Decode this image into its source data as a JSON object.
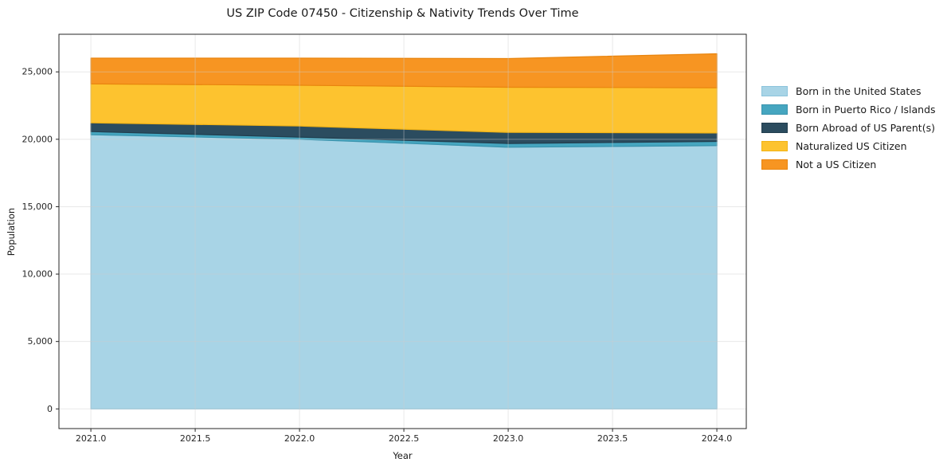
{
  "title": "US ZIP Code 07450 - Citizenship & Nativity Trends Over Time",
  "chart_data": {
    "type": "area",
    "stacked": true,
    "title": "US ZIP Code 07450 - Citizenship & Nativity Trends Over Time",
    "xlabel": "Year",
    "ylabel": "Population",
    "x": [
      2021,
      2022,
      2023,
      2024
    ],
    "series": [
      {
        "name": "Born in the United States",
        "color": "#a8d4e6",
        "edge": "#8cc4dc",
        "values": [
          20340,
          20000,
          19410,
          19530
        ]
      },
      {
        "name": "Born in Puerto Rico / Islands",
        "color": "#46a6c0",
        "edge": "#3a94ae",
        "values": [
          230,
          160,
          280,
          310
        ]
      },
      {
        "name": "Born Abroad of US Parent(s)",
        "color": "#2b4c5f",
        "edge": "#223e4e",
        "values": [
          650,
          820,
          820,
          630
        ]
      },
      {
        "name": "Naturalized US Citizen",
        "color": "#fdc32f",
        "edge": "#f2b316",
        "values": [
          2890,
          3030,
          3350,
          3350
        ]
      },
      {
        "name": "Not a US Citizen",
        "color": "#f79522",
        "edge": "#e9850e",
        "values": [
          1910,
          2010,
          2130,
          2520
        ]
      }
    ],
    "x_tick_labels": [
      "2021.0",
      "2021.5",
      "2022.0",
      "2022.5",
      "2023.0",
      "2023.5",
      "2024.0"
    ],
    "x_tick_values": [
      2021,
      2021.5,
      2022,
      2022.5,
      2023,
      2023.5,
      2024
    ],
    "y_tick_labels": [
      "0",
      "5,000",
      "10,000",
      "15,000",
      "20,000",
      "25,000"
    ],
    "y_tick_values": [
      0,
      5000,
      10000,
      15000,
      20000,
      25000
    ],
    "xlim": [
      2020.847,
      2024.141
    ],
    "ylim": [
      -1460,
      27790
    ],
    "grid": true,
    "legend_position": "right-outside",
    "axis_color": "#262626",
    "grid_color": "#cccccc"
  }
}
